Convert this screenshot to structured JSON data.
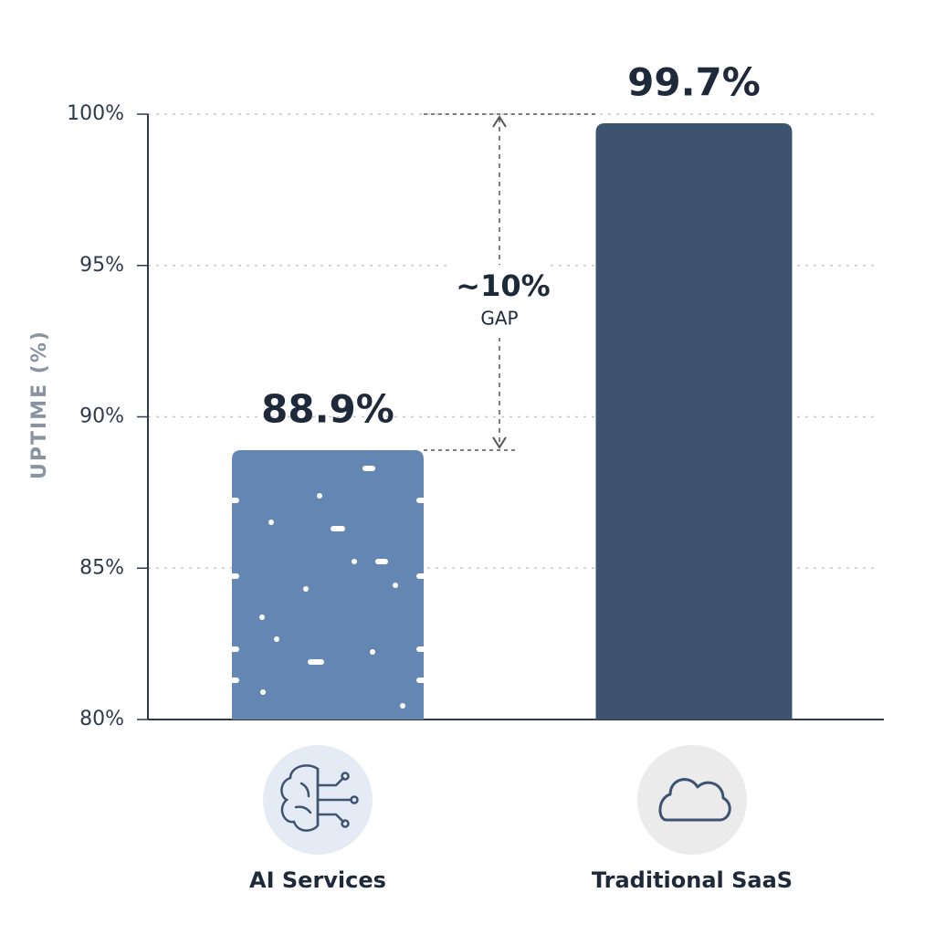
{
  "chart_data": {
    "type": "bar",
    "y_label": "UPTIME (%)",
    "categories": [
      "AI Services",
      "Traditional SaaS"
    ],
    "values": [
      88.9,
      99.7
    ],
    "value_labels": [
      "88.9%",
      "99.7%"
    ],
    "colors": [
      "#6386b3",
      "#3d5370"
    ],
    "ylim": [
      80,
      100
    ],
    "yticks": [
      {
        "value": 80,
        "label": "80%"
      },
      {
        "value": 85,
        "label": "85%"
      },
      {
        "value": 90,
        "label": "90%"
      },
      {
        "value": 95,
        "label": "95%"
      },
      {
        "value": 100,
        "label": "100%"
      }
    ],
    "grid": true,
    "annotation": {
      "value": "~10%",
      "caption": "GAP"
    }
  }
}
